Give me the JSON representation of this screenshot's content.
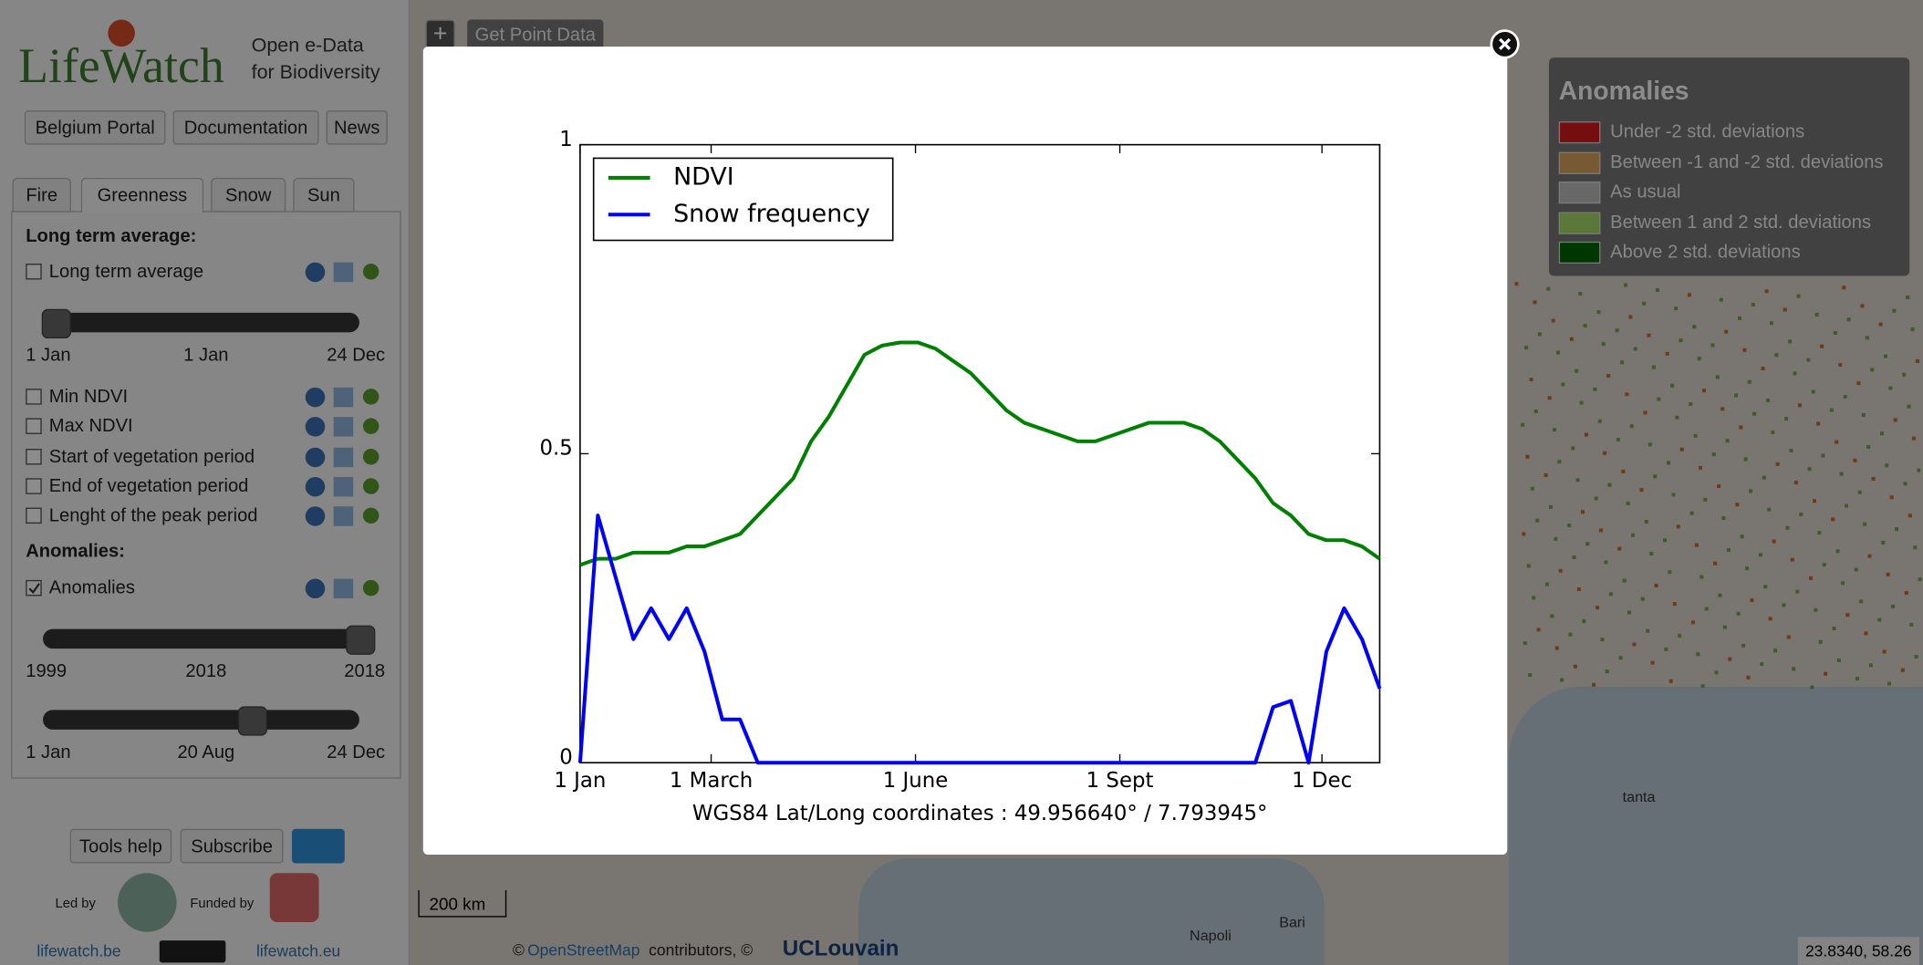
{
  "sidebar": {
    "logo": "LifeWatch",
    "tagline": [
      "Open e-Data",
      "for Biodiversity"
    ],
    "nav": [
      "Belgium Portal",
      "Documentation",
      "News"
    ],
    "tabs": [
      "Fire",
      "Greenness",
      "Snow",
      "Sun"
    ],
    "long_term_heading": "Long term average:",
    "long_term_layer": {
      "label": "Long term average",
      "checked": false
    },
    "slider1_labels": [
      "1 Jan",
      "1 Jan",
      "24 Dec"
    ],
    "layers": [
      {
        "label": "Min NDVI",
        "checked": false
      },
      {
        "label": "Max NDVI",
        "checked": false
      },
      {
        "label": "Start of vegetation period",
        "checked": false
      },
      {
        "label": "End of vegetation period",
        "checked": false
      },
      {
        "label": "Lenght of the peak period",
        "checked": false
      }
    ],
    "anomalies_heading": "Anomalies:",
    "anomalies_layer": {
      "label": "Anomalies",
      "checked": true
    },
    "slider2_labels": [
      "1999",
      "2018",
      "2018"
    ],
    "slider3_labels": [
      "1 Jan",
      "20 Aug",
      "24 Dec"
    ],
    "footer_buttons": [
      "Tools help",
      "Subscribe"
    ],
    "led_by": "Led by",
    "funded_by": "Funded by",
    "links": [
      "lifewatch.be",
      "lifewatch.eu"
    ]
  },
  "map": {
    "zoom_button": "+",
    "point_button": "Get Point Data",
    "scale": "200 km",
    "attribution_prefix": "©",
    "attribution_link": "OpenStreetMap",
    "attribution_text": "contributors, ©",
    "brand": "UCLouvain",
    "coordinates": "23.8340, 58.26",
    "places": [
      "Napoli",
      "Bari",
      "tanta"
    ]
  },
  "legend": {
    "title": "Anomalies",
    "items": [
      {
        "label": "Under -2 std. deviations",
        "color": "#d7191c"
      },
      {
        "label": "Between -1 and -2 std. deviations",
        "color": "#d9a25f"
      },
      {
        "label": "As usual",
        "color": "#bdbdbd"
      },
      {
        "label": "Between 1 and 2 std. deviations",
        "color": "#a6d96a"
      },
      {
        "label": "Above 2 std. deviations",
        "color": "#006400"
      }
    ]
  },
  "chart_data": {
    "type": "line",
    "xlabel": "WGS84 Lat/Long coordinates :  49.956640°  / 7.793945°",
    "x": [
      0,
      8,
      16,
      24,
      32,
      40,
      48,
      56,
      64,
      72,
      80,
      88,
      96,
      104,
      112,
      120,
      128,
      136,
      144,
      152,
      160,
      168,
      176,
      184,
      192,
      200,
      208,
      216,
      224,
      232,
      240,
      248,
      256,
      264,
      272,
      280,
      288,
      296,
      304,
      312,
      320,
      328,
      336,
      344,
      352,
      360
    ],
    "series": [
      {
        "name": "NDVI",
        "color": "#008000",
        "values": [
          0.32,
          0.33,
          0.33,
          0.34,
          0.34,
          0.34,
          0.35,
          0.35,
          0.36,
          0.37,
          0.4,
          0.43,
          0.46,
          0.52,
          0.56,
          0.61,
          0.66,
          0.675,
          0.68,
          0.68,
          0.67,
          0.65,
          0.63,
          0.6,
          0.57,
          0.55,
          0.54,
          0.53,
          0.52,
          0.52,
          0.53,
          0.54,
          0.55,
          0.55,
          0.55,
          0.54,
          0.52,
          0.49,
          0.46,
          0.42,
          0.4,
          0.37,
          0.36,
          0.36,
          0.35,
          0.33
        ]
      },
      {
        "name": "Snow frequency",
        "color": "#0000ff",
        "values": [
          0,
          0.4,
          0.3,
          0.2,
          0.25,
          0.2,
          0.25,
          0.18,
          0.07,
          0.07,
          0,
          0,
          0,
          0,
          0,
          0,
          0,
          0,
          0,
          0,
          0,
          0,
          0,
          0,
          0,
          0,
          0,
          0,
          0,
          0,
          0,
          0,
          0,
          0,
          0,
          0,
          0,
          0,
          0,
          0.09,
          0.1,
          0,
          0.18,
          0.25,
          0.2,
          0.12
        ]
      }
    ],
    "xlim": [
      0,
      360
    ],
    "xticks": [
      {
        "value": 0,
        "label": "1 Jan"
      },
      {
        "value": 59,
        "label": "1 March"
      },
      {
        "value": 151,
        "label": "1 June"
      },
      {
        "value": 243,
        "label": "1 Sept"
      },
      {
        "value": 334,
        "label": "1 Dec"
      }
    ],
    "ylim": [
      0,
      1
    ],
    "yticks": [
      0,
      0.5,
      1
    ],
    "grid": false,
    "legend": "upper left"
  }
}
